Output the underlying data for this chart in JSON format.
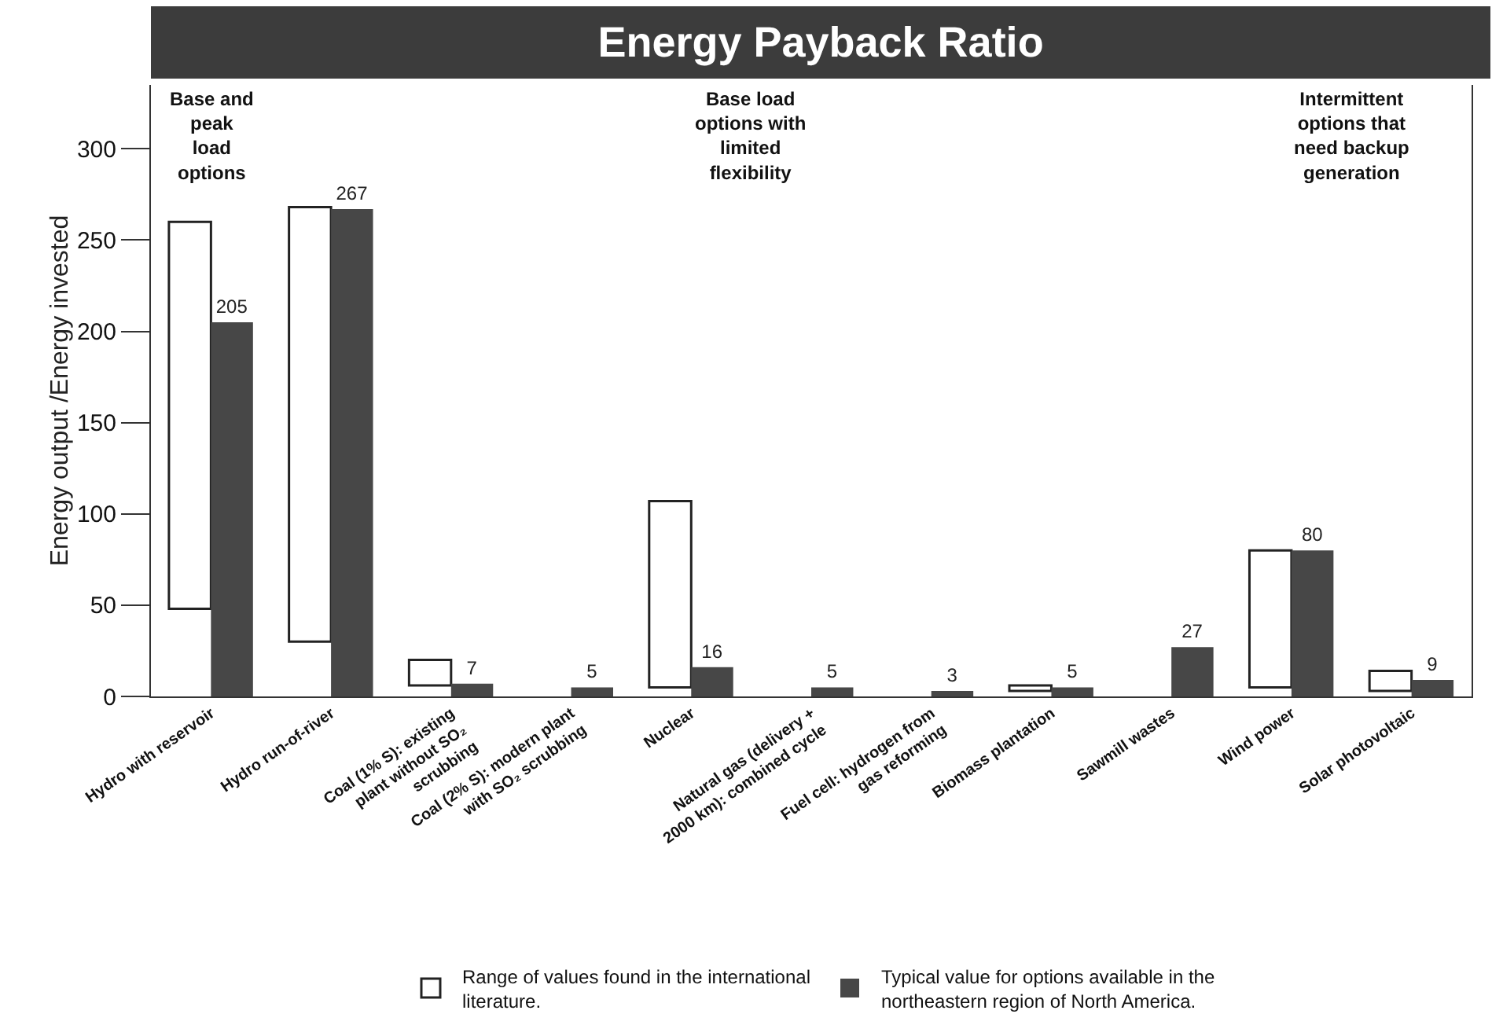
{
  "chart_data": {
    "type": "bar",
    "title": "Energy Payback Ratio",
    "ylabel": "Energy output /Energy invested",
    "categories": [
      "Hydro with reservoir",
      "Hydro run-of-river",
      "Coal (1% S): existing plant without SO₂ scrubbing",
      "Coal (2% S): modern plant with SO₂ scrubbing",
      "Nuclear",
      "Natural gas (delivery + 2000 km): combined cycle",
      "Fuel cell: hydrogen from gas reforming",
      "Biomass plantation",
      "Sawmill wastes",
      "Wind power",
      "Solar photovoltaic"
    ],
    "series": [
      {
        "name": "Range of values found in the international literature.",
        "color": "#ffffff",
        "base": [
          48,
          30,
          6,
          null,
          5,
          null,
          null,
          3,
          null,
          5,
          3
        ],
        "values": [
          212,
          238,
          14,
          null,
          102,
          null,
          null,
          3,
          null,
          75,
          11
        ]
      },
      {
        "name": "Typical value for options available in the northeastern region of North America.",
        "color": "#474747",
        "data_labels": true,
        "values": [
          205,
          267,
          7,
          5,
          16,
          5,
          3,
          5,
          27,
          80,
          9
        ]
      }
    ],
    "ylim": [
      0,
      335
    ],
    "yticks": [
      0,
      50,
      100,
      150,
      200,
      250,
      300
    ],
    "annotations": [
      "Base and peak load options",
      "Base load options with limited flexibility",
      "Intermittent options that need backup generation"
    ],
    "grid": false,
    "legend": "bottom"
  }
}
